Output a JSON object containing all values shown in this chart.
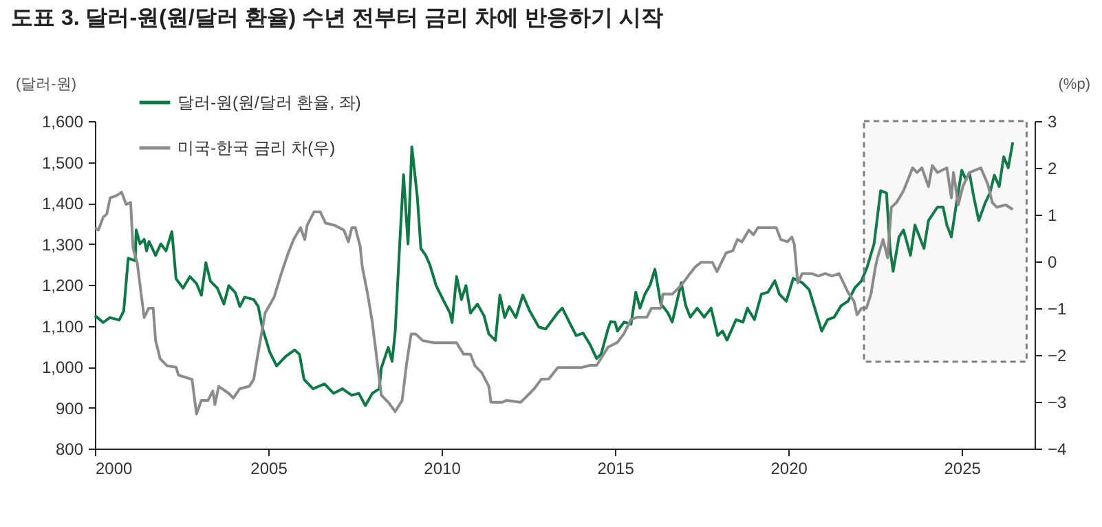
{
  "chart_data": {
    "type": "line",
    "title": "도표 3. 달러-원(원/달러 환율) 수년 전부터 금리 차에 반응하기 시작",
    "ylabel": "(달러-원)",
    "y2label": "(%p)",
    "xlim": [
      2000,
      2027.1
    ],
    "xticks": [
      2000,
      2005,
      2010,
      2015,
      2020,
      2025
    ],
    "ylim": [
      800,
      1600
    ],
    "yticks": [
      {
        "value": 800,
        "label": "800"
      },
      {
        "value": 900,
        "label": "900"
      },
      {
        "value": 1000,
        "label": "1,000"
      },
      {
        "value": 1100,
        "label": "1,100"
      },
      {
        "value": 1200,
        "label": "1,200"
      },
      {
        "value": 1300,
        "label": "1,300"
      },
      {
        "value": 1400,
        "label": "1,400"
      },
      {
        "value": 1500,
        "label": "1,500"
      },
      {
        "value": 1600,
        "label": "1,600"
      }
    ],
    "y2lim": [
      -4,
      3
    ],
    "y2ticks": [
      {
        "value": -4,
        "label": "−4"
      },
      {
        "value": -3,
        "label": "−3"
      },
      {
        "value": -2,
        "label": "−2"
      },
      {
        "value": -1,
        "label": "−1"
      },
      {
        "value": 0,
        "label": "0"
      },
      {
        "value": 1,
        "label": "1"
      },
      {
        "value": 2,
        "label": "2"
      },
      {
        "value": 3,
        "label": "3"
      }
    ],
    "legend": "top left",
    "bands": [
      {
        "axis": "x",
        "from": 2022.18,
        "to": 2026.87,
        "color": "#808080"
      }
    ],
    "series": [
      {
        "name": "달러-원(원/달러  환율, 좌)",
        "color": "#0d7a45",
        "x": [
          2000.0,
          2000.24,
          2000.43,
          2000.7,
          2000.83,
          2000.96,
          2001.16,
          2001.19,
          2001.3,
          2001.42,
          2001.49,
          2001.56,
          2001.75,
          2001.9,
          2002.05,
          2002.22,
          2002.34,
          2002.54,
          2002.74,
          2002.93,
          2003.07,
          2003.2,
          2003.33,
          2003.53,
          2003.72,
          2003.86,
          2004.05,
          2004.18,
          2004.32,
          2004.58,
          2004.71,
          2004.84,
          2005.04,
          2005.24,
          2005.5,
          2005.76,
          2005.9,
          2006.03,
          2006.29,
          2006.62,
          2006.88,
          2007.14,
          2007.41,
          2007.61,
          2007.8,
          2008.0,
          2008.2,
          2008.26,
          2008.46,
          2008.57,
          2008.66,
          2008.79,
          2008.9,
          2009.03,
          2009.14,
          2009.3,
          2009.4,
          2009.54,
          2009.66,
          2009.84,
          2010.04,
          2010.24,
          2010.3,
          2010.43,
          2010.57,
          2010.7,
          2010.83,
          2011.03,
          2011.22,
          2011.36,
          2011.55,
          2011.68,
          2011.82,
          2011.95,
          2012.14,
          2012.34,
          2012.54,
          2012.8,
          2013.0,
          2013.35,
          2013.48,
          2013.68,
          2013.88,
          2014.08,
          2014.28,
          2014.47,
          2014.6,
          2014.8,
          2014.87,
          2015.0,
          2015.07,
          2015.26,
          2015.46,
          2015.6,
          2015.72,
          2015.86,
          2016.01,
          2016.15,
          2016.32,
          2016.52,
          2016.65,
          2016.91,
          2017.04,
          2017.17,
          2017.37,
          2017.57,
          2017.77,
          2017.96,
          2018.1,
          2018.23,
          2018.49,
          2018.69,
          2018.82,
          2019.02,
          2019.22,
          2019.41,
          2019.61,
          2019.74,
          2019.94,
          2020.14,
          2020.4,
          2020.6,
          2020.8,
          2020.96,
          2021.13,
          2021.32,
          2021.52,
          2021.72,
          2021.92,
          2022.11,
          2022.27,
          2022.47,
          2022.66,
          2022.83,
          2022.93,
          2023.02,
          2023.19,
          2023.32,
          2023.52,
          2023.65,
          2023.91,
          2024.04,
          2024.3,
          2024.46,
          2024.57,
          2024.7,
          2024.83,
          2025.0,
          2025.12,
          2025.22,
          2025.35,
          2025.49,
          2025.68,
          2025.81,
          2025.94,
          2026.08,
          2026.21,
          2026.34,
          2026.47
        ],
        "values": [
          1125,
          1108,
          1120,
          1114,
          1136,
          1265,
          1259,
          1334,
          1300,
          1311,
          1283,
          1306,
          1272,
          1300,
          1283,
          1330,
          1215,
          1192,
          1220,
          1203,
          1175,
          1254,
          1209,
          1192,
          1153,
          1198,
          1181,
          1147,
          1170,
          1164,
          1147,
          1092,
          1036,
          1002,
          1025,
          1041,
          1030,
          969,
          946,
          958,
          935,
          946,
          930,
          935,
          905,
          935,
          946,
          997,
          1047,
          1013,
          1086,
          1300,
          1469,
          1300,
          1537,
          1413,
          1289,
          1272,
          1249,
          1198,
          1164,
          1131,
          1108,
          1220,
          1164,
          1198,
          1131,
          1153,
          1125,
          1080,
          1064,
          1175,
          1120,
          1147,
          1120,
          1175,
          1136,
          1097,
          1092,
          1132,
          1143,
          1109,
          1076,
          1082,
          1054,
          1020,
          1031,
          1093,
          1110,
          1109,
          1087,
          1109,
          1104,
          1182,
          1143,
          1177,
          1199,
          1238,
          1154,
          1132,
          1109,
          1205,
          1149,
          1121,
          1143,
          1121,
          1143,
          1076,
          1087,
          1065,
          1115,
          1109,
          1143,
          1115,
          1177,
          1182,
          1210,
          1177,
          1160,
          1216,
          1205,
          1188,
          1132,
          1087,
          1115,
          1121,
          1149,
          1160,
          1193,
          1210,
          1243,
          1300,
          1430,
          1424,
          1289,
          1233,
          1317,
          1334,
          1272,
          1346,
          1289,
          1357,
          1390,
          1390,
          1346,
          1317,
          1390,
          1480,
          1457,
          1474,
          1413,
          1357,
          1401,
          1424,
          1468,
          1440,
          1513,
          1486,
          1548
        ]
      },
      {
        "name": "미국-한국 금리 차(우)",
        "color": "#8c8c8c",
        "axis": "y2",
        "x": [
          2000.0,
          2000.1,
          2000.24,
          2000.34,
          2000.44,
          2000.63,
          2000.77,
          2000.9,
          2001.03,
          2001.1,
          2001.22,
          2001.42,
          2001.55,
          2001.68,
          2001.75,
          2001.88,
          2002.08,
          2002.34,
          2002.41,
          2002.8,
          2002.93,
          2003.07,
          2003.26,
          2003.4,
          2003.46,
          2003.57,
          2003.86,
          2003.99,
          2004.18,
          2004.45,
          2004.58,
          2004.71,
          2004.91,
          2005.17,
          2005.37,
          2005.57,
          2005.73,
          2005.93,
          2006.05,
          2006.12,
          2006.32,
          2006.5,
          2006.65,
          2006.92,
          2007.18,
          2007.31,
          2007.41,
          2007.51,
          2007.65,
          2007.71,
          2007.87,
          2008.0,
          2008.13,
          2008.26,
          2008.46,
          2008.66,
          2008.86,
          2008.99,
          2009.12,
          2009.25,
          2009.45,
          2009.78,
          2010.43,
          2010.63,
          2010.83,
          2010.96,
          2011.16,
          2011.36,
          2011.42,
          2011.75,
          2011.88,
          2012.28,
          2012.54,
          2012.67,
          2012.87,
          2013.09,
          2013.35,
          2014.01,
          2014.28,
          2014.47,
          2014.6,
          2014.8,
          2015.07,
          2015.26,
          2015.46,
          2015.66,
          2015.92,
          2016.05,
          2016.32,
          2016.38,
          2016.65,
          2016.91,
          2017.11,
          2017.31,
          2017.48,
          2017.81,
          2017.94,
          2018.2,
          2018.4,
          2018.53,
          2018.66,
          2018.86,
          2018.99,
          2019.12,
          2019.45,
          2019.65,
          2019.78,
          2019.97,
          2020.1,
          2020.17,
          2020.27,
          2020.4,
          2020.67,
          2020.86,
          2021.06,
          2021.26,
          2021.46,
          2021.59,
          2021.72,
          2021.89,
          2021.98,
          2022.11,
          2022.25,
          2022.38,
          2022.51,
          2022.57,
          2022.73,
          2022.86,
          2022.97,
          2023.12,
          2023.32,
          2023.45,
          2023.58,
          2023.71,
          2023.85,
          2024.04,
          2024.15,
          2024.3,
          2024.57,
          2024.7,
          2024.76,
          2024.9,
          2025.03,
          2025.22,
          2025.55,
          2025.75,
          2025.88,
          2026.01,
          2026.27,
          2026.47
        ],
        "values": [
          0.72,
          0.67,
          0.95,
          1.01,
          1.36,
          1.41,
          1.48,
          1.22,
          1.26,
          0.28,
          -0.03,
          -1.2,
          -1.0,
          -1.0,
          -1.69,
          -2.08,
          -2.23,
          -2.26,
          -2.43,
          -2.52,
          -3.26,
          -2.97,
          -2.97,
          -2.77,
          -3.06,
          -2.67,
          -2.82,
          -2.92,
          -2.72,
          -2.67,
          -2.52,
          -1.94,
          -1.1,
          -0.76,
          -0.27,
          0.17,
          0.47,
          0.72,
          0.47,
          0.77,
          1.06,
          1.06,
          0.82,
          0.77,
          0.67,
          0.42,
          0.72,
          0.72,
          0.32,
          -0.11,
          -0.72,
          -1.3,
          -2.08,
          -2.86,
          -3.01,
          -3.21,
          -2.97,
          -2.18,
          -1.55,
          -1.55,
          -1.69,
          -1.74,
          -1.74,
          -1.98,
          -1.98,
          -2.23,
          -2.38,
          -2.67,
          -3.01,
          -3.01,
          -2.97,
          -3.01,
          -2.82,
          -2.72,
          -2.52,
          -2.51,
          -2.27,
          -2.27,
          -2.22,
          -2.22,
          -2.07,
          -1.83,
          -1.73,
          -1.54,
          -1.24,
          -1.19,
          -1.19,
          -1.0,
          -1.0,
          -0.7,
          -0.7,
          -0.51,
          -0.31,
          -0.12,
          -0.02,
          -0.02,
          -0.22,
          0.18,
          0.23,
          0.47,
          0.42,
          0.67,
          0.57,
          0.72,
          0.72,
          0.72,
          0.47,
          0.42,
          0.52,
          0.37,
          -0.46,
          -0.26,
          -0.26,
          -0.31,
          -0.26,
          -0.31,
          -0.26,
          -0.46,
          -0.66,
          -0.85,
          -1.14,
          -1.0,
          -1.0,
          -0.7,
          -0.12,
          0.08,
          0.47,
          0.08,
          1.16,
          1.26,
          1.51,
          1.75,
          2.0,
          1.9,
          2.0,
          1.6,
          2.05,
          1.9,
          2.0,
          1.36,
          1.9,
          1.21,
          1.6,
          1.9,
          2.0,
          1.65,
          1.26,
          1.16,
          1.21,
          1.11
        ]
      }
    ]
  }
}
